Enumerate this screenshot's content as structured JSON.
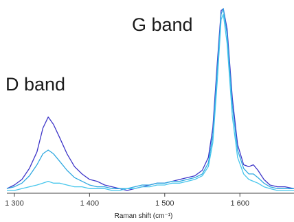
{
  "chart_data": {
    "type": "line",
    "xlabel": "Raman shift (cm⁻¹)",
    "xlim": [
      1290,
      1672
    ],
    "ylim": [
      0,
      1.0
    ],
    "x_ticks": [
      {
        "value": 1300,
        "label": "1 300"
      },
      {
        "value": 1400,
        "label": "1 400"
      },
      {
        "value": 1500,
        "label": "1 500"
      },
      {
        "value": 1600,
        "label": "1 600"
      }
    ],
    "annotations": [
      {
        "text": "G band",
        "x": 1530,
        "y": 0.86
      },
      {
        "text": "D band",
        "x": 1300,
        "y": 0.52
      }
    ],
    "grid": false,
    "series": [
      {
        "color": "#3d35c8",
        "points": [
          [
            1290,
            0.01
          ],
          [
            1300,
            0.03
          ],
          [
            1310,
            0.06
          ],
          [
            1320,
            0.12
          ],
          [
            1330,
            0.21
          ],
          [
            1338,
            0.34
          ],
          [
            1345,
            0.4
          ],
          [
            1352,
            0.36
          ],
          [
            1360,
            0.29
          ],
          [
            1370,
            0.2
          ],
          [
            1380,
            0.13
          ],
          [
            1390,
            0.09
          ],
          [
            1400,
            0.06
          ],
          [
            1410,
            0.05
          ],
          [
            1420,
            0.03
          ],
          [
            1430,
            0.02
          ],
          [
            1440,
            0.01
          ],
          [
            1450,
            0.0
          ],
          [
            1460,
            0.01
          ],
          [
            1470,
            0.02
          ],
          [
            1480,
            0.03
          ],
          [
            1490,
            0.04
          ],
          [
            1500,
            0.04
          ],
          [
            1510,
            0.05
          ],
          [
            1520,
            0.06
          ],
          [
            1530,
            0.07
          ],
          [
            1540,
            0.08
          ],
          [
            1550,
            0.11
          ],
          [
            1558,
            0.18
          ],
          [
            1564,
            0.34
          ],
          [
            1570,
            0.7
          ],
          [
            1575,
            0.98
          ],
          [
            1578,
            0.99
          ],
          [
            1583,
            0.88
          ],
          [
            1590,
            0.5
          ],
          [
            1597,
            0.25
          ],
          [
            1605,
            0.14
          ],
          [
            1612,
            0.13
          ],
          [
            1618,
            0.14
          ],
          [
            1624,
            0.11
          ],
          [
            1632,
            0.06
          ],
          [
            1640,
            0.03
          ],
          [
            1650,
            0.02
          ],
          [
            1660,
            0.02
          ],
          [
            1672,
            0.01
          ]
        ]
      },
      {
        "color": "#2ea8e0",
        "points": [
          [
            1290,
            0.01
          ],
          [
            1300,
            0.02
          ],
          [
            1310,
            0.04
          ],
          [
            1320,
            0.08
          ],
          [
            1330,
            0.14
          ],
          [
            1338,
            0.2
          ],
          [
            1345,
            0.22
          ],
          [
            1352,
            0.2
          ],
          [
            1360,
            0.16
          ],
          [
            1370,
            0.11
          ],
          [
            1380,
            0.07
          ],
          [
            1390,
            0.05
          ],
          [
            1400,
            0.03
          ],
          [
            1410,
            0.02
          ],
          [
            1420,
            0.02
          ],
          [
            1430,
            0.01
          ],
          [
            1440,
            0.01
          ],
          [
            1450,
            0.01
          ],
          [
            1460,
            0.02
          ],
          [
            1470,
            0.03
          ],
          [
            1480,
            0.03
          ],
          [
            1490,
            0.04
          ],
          [
            1500,
            0.04
          ],
          [
            1510,
            0.05
          ],
          [
            1520,
            0.05
          ],
          [
            1530,
            0.06
          ],
          [
            1540,
            0.07
          ],
          [
            1550,
            0.09
          ],
          [
            1558,
            0.15
          ],
          [
            1564,
            0.3
          ],
          [
            1570,
            0.66
          ],
          [
            1575,
            0.96
          ],
          [
            1578,
            0.99
          ],
          [
            1583,
            0.85
          ],
          [
            1590,
            0.46
          ],
          [
            1597,
            0.22
          ],
          [
            1605,
            0.12
          ],
          [
            1612,
            0.09
          ],
          [
            1618,
            0.09
          ],
          [
            1624,
            0.07
          ],
          [
            1632,
            0.04
          ],
          [
            1640,
            0.02
          ],
          [
            1650,
            0.01
          ],
          [
            1660,
            0.01
          ],
          [
            1672,
            0.01
          ]
        ]
      },
      {
        "color": "#46c6ec",
        "points": [
          [
            1290,
            0.0
          ],
          [
            1300,
            0.0
          ],
          [
            1310,
            0.01
          ],
          [
            1320,
            0.02
          ],
          [
            1330,
            0.03
          ],
          [
            1338,
            0.04
          ],
          [
            1345,
            0.05
          ],
          [
            1352,
            0.04
          ],
          [
            1360,
            0.04
          ],
          [
            1370,
            0.03
          ],
          [
            1380,
            0.02
          ],
          [
            1390,
            0.02
          ],
          [
            1400,
            0.01
          ],
          [
            1410,
            0.01
          ],
          [
            1420,
            0.01
          ],
          [
            1430,
            0.0
          ],
          [
            1440,
            0.0
          ],
          [
            1450,
            0.01
          ],
          [
            1460,
            0.01
          ],
          [
            1470,
            0.02
          ],
          [
            1480,
            0.02
          ],
          [
            1490,
            0.03
          ],
          [
            1500,
            0.03
          ],
          [
            1510,
            0.04
          ],
          [
            1520,
            0.04
          ],
          [
            1530,
            0.05
          ],
          [
            1540,
            0.06
          ],
          [
            1550,
            0.08
          ],
          [
            1558,
            0.13
          ],
          [
            1564,
            0.26
          ],
          [
            1570,
            0.6
          ],
          [
            1575,
            0.93
          ],
          [
            1578,
            0.96
          ],
          [
            1583,
            0.8
          ],
          [
            1590,
            0.4
          ],
          [
            1597,
            0.18
          ],
          [
            1605,
            0.09
          ],
          [
            1612,
            0.06
          ],
          [
            1618,
            0.05
          ],
          [
            1624,
            0.04
          ],
          [
            1632,
            0.02
          ],
          [
            1640,
            0.01
          ],
          [
            1650,
            0.0
          ],
          [
            1660,
            0.0
          ],
          [
            1672,
            0.0
          ]
        ]
      }
    ]
  }
}
